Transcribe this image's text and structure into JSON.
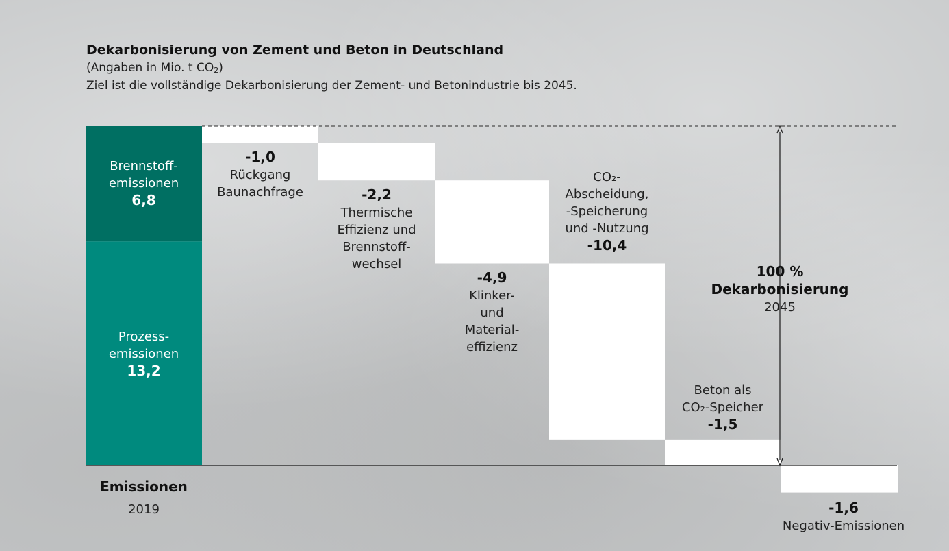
{
  "header": {
    "title": "Dekarbonisierung von Zement und Beton in Deutschland",
    "unit_prefix": "(Angaben in Mio. t CO",
    "unit_sub": "2",
    "unit_suffix": ")",
    "subtitle": "Ziel ist die vollständige Dekarbonisierung der Zement- und Betonindustrie bis 2045."
  },
  "colors": {
    "fuel_emissions": "#006f62",
    "process_emissions": "#008a7e",
    "step_fill": "#ffffff",
    "background": "#c7c9ca"
  },
  "chart_data": {
    "type": "waterfall",
    "ylim": [
      -1.6,
      20.0
    ],
    "start": {
      "label": "Emissionen",
      "year": "2019",
      "total": 20.0,
      "segments": [
        {
          "name_lines": [
            "Brennstoff-",
            "emissionen"
          ],
          "value_label": "6,8",
          "value": 6.8
        },
        {
          "name_lines": [
            "Prozess-",
            "emissionen"
          ],
          "value_label": "13,2",
          "value": 13.2
        }
      ]
    },
    "steps": [
      {
        "value_label": "-1,0",
        "value": -1.0,
        "label_lines": [
          "Rückgang",
          "Baunachfrage"
        ]
      },
      {
        "value_label": "-2,2",
        "value": -2.2,
        "label_lines": [
          "Thermische",
          "Effizienz und",
          "Brennstoff-",
          "wechsel"
        ]
      },
      {
        "value_label": "-4,9",
        "value": -4.9,
        "label_lines": [
          "Klinker-",
          "und",
          "Material-",
          "effizienz"
        ]
      },
      {
        "value_label": "-10,4",
        "value": -10.4,
        "label_lines": [
          "CO₂-",
          "Abscheidung,",
          "-Speicherung",
          "und -Nutzung"
        ]
      },
      {
        "value_label": "-1,5",
        "value": -1.5,
        "label_lines": [
          "Beton als",
          "CO₂-Speicher"
        ]
      },
      {
        "value_label": "-1,6",
        "value": -1.6,
        "label_lines": [
          "Negativ-Emissionen"
        ]
      }
    ],
    "target": {
      "percent": "100 %",
      "label": "Dekarbonisierung",
      "year": "2045"
    }
  }
}
